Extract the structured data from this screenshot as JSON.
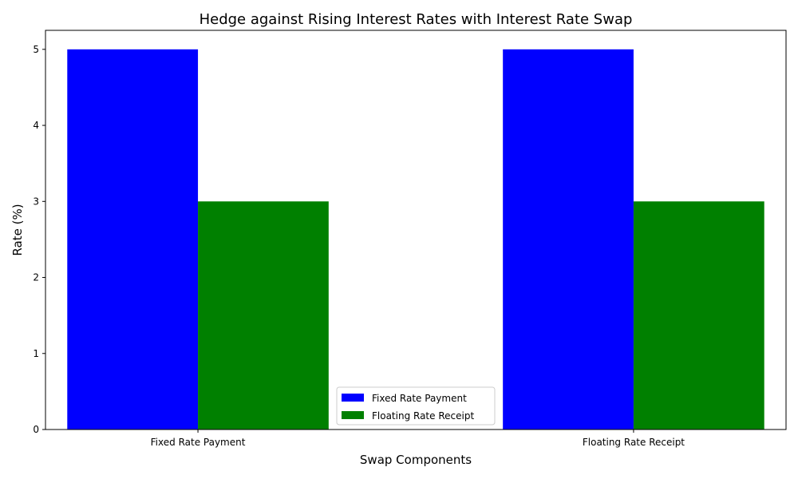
{
  "chart_data": {
    "type": "bar",
    "title": "Hedge against Rising Interest Rates with Interest Rate Swap",
    "xlabel": "Swap Components",
    "ylabel": "Rate (%)",
    "categories": [
      "Fixed Rate Payment",
      "Floating Rate Receipt"
    ],
    "series": [
      {
        "name": "Fixed Rate Payment",
        "values": [
          5,
          5
        ],
        "color": "#0000ff"
      },
      {
        "name": "Floating Rate Receipt",
        "values": [
          3,
          3
        ],
        "color": "#008000"
      }
    ],
    "ylim": [
      0,
      5.25
    ],
    "yticks": [
      0,
      1,
      2,
      3,
      4,
      5
    ],
    "grid": false,
    "legend_position": "lower-center"
  }
}
